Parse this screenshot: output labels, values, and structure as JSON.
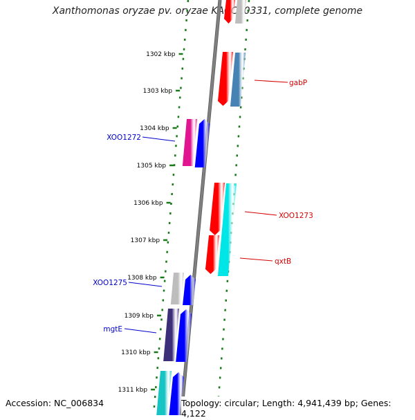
{
  "title": "Xanthomonas oryzae pv. oryzae KACC10331, complete genome",
  "footer": {
    "accession": "Accession: NC_006834",
    "stats": "Topology: circular; Length: 4,941,439 bp; Genes: 4,122"
  },
  "ticks": [
    "1302 kbp",
    "1303 kbp",
    "1304 kbp",
    "1305 kbp",
    "1306 kbp",
    "1307 kbp",
    "1308 kbp",
    "1309 kbp",
    "1310 kbp",
    "1311 kbp"
  ],
  "genes": [
    {
      "label": "gabP",
      "strand": "right",
      "color": "#d40000"
    },
    {
      "label": "XOO1272",
      "strand": "left",
      "color": "#0000cc"
    },
    {
      "label": "XOO1273",
      "strand": "right",
      "color": "#d40000"
    },
    {
      "label": "qxtB",
      "strand": "right",
      "color": "#d40000"
    },
    {
      "label": "XOO1275",
      "strand": "left",
      "color": "#0000cc"
    },
    {
      "label": "mgtE",
      "strand": "left",
      "color": "#0000cc"
    }
  ],
  "colors": {
    "red": "#ff0000",
    "steelblue": "#4682b4",
    "magenta": "#e0158f",
    "blue": "#0000ff",
    "cyan": "#00e5e5",
    "grey": "#bdbdbd",
    "darkpurple": "#3d2e7a",
    "teal": "#17c4c4",
    "tick_green": "#1a7a1a",
    "backbone": "#808080"
  }
}
